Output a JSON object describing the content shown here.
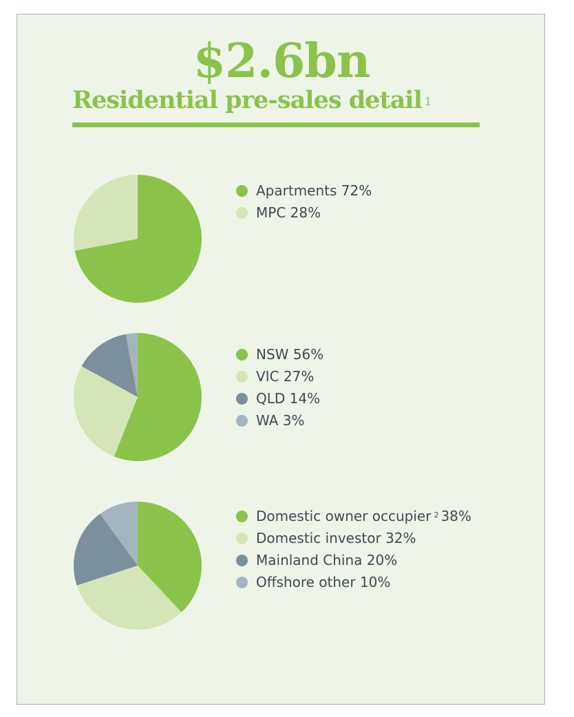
{
  "header": {
    "amount": "$2.6bn",
    "title": "Residential pre-sales detail",
    "footnote_marker": "1"
  },
  "colors": {
    "green": "#8bc34a",
    "light_green": "#d4e6b8",
    "slate": "#7b8f9c",
    "light_slate": "#a5b5c0",
    "panel_background": "#eef5e8"
  },
  "chart_data": [
    {
      "type": "pie",
      "title": "",
      "categories": [
        "Apartments",
        "MPC"
      ],
      "values": [
        72,
        28
      ],
      "colors": [
        "#8bc34a",
        "#d4e6b8"
      ],
      "legend": {
        "placement": "right",
        "items": [
          {
            "text": "Apartments 72%",
            "sup": ""
          },
          {
            "text": "MPC 28%",
            "sup": ""
          }
        ]
      }
    },
    {
      "type": "pie",
      "title": "",
      "categories": [
        "NSW",
        "VIC",
        "QLD",
        "WA"
      ],
      "values": [
        56,
        27,
        14,
        3
      ],
      "colors": [
        "#8bc34a",
        "#d4e6b8",
        "#7b8f9c",
        "#a5b5c0"
      ],
      "legend": {
        "placement": "right",
        "items": [
          {
            "text": "NSW 56%",
            "sup": ""
          },
          {
            "text": "VIC 27%",
            "sup": ""
          },
          {
            "text": "QLD 14%",
            "sup": ""
          },
          {
            "text": "WA 3%",
            "sup": ""
          }
        ]
      }
    },
    {
      "type": "pie",
      "title": "",
      "categories": [
        "Domestic owner occupier",
        "Domestic investor",
        "Mainland China",
        "Offshore other"
      ],
      "values": [
        38,
        32,
        20,
        10
      ],
      "colors": [
        "#8bc34a",
        "#d4e6b8",
        "#7b8f9c",
        "#a5b5c0"
      ],
      "legend": {
        "placement": "right",
        "items": [
          {
            "text": "Domestic owner occupier",
            "sup": "2",
            "suffix": "38%"
          },
          {
            "text": "Domestic investor 32%",
            "sup": ""
          },
          {
            "text": "Mainland China 20%",
            "sup": ""
          },
          {
            "text": "Offshore other 10%",
            "sup": ""
          }
        ]
      }
    }
  ]
}
